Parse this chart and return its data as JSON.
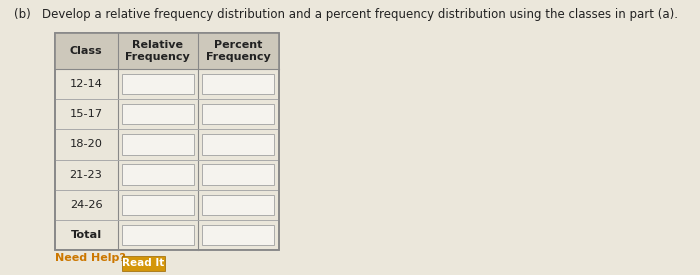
{
  "title": "(b)   Develop a relative frequency distribution and a percent frequency distribution using the classes in part (a).",
  "title_fontsize": 8.5,
  "col_headers": [
    "Class",
    "Relative\nFrequency",
    "Percent\nFrequency"
  ],
  "rows": [
    "12-14",
    "15-17",
    "18-20",
    "21-23",
    "24-26",
    "Total"
  ],
  "figure_bg": "#ebe7db",
  "table_bg": "#eae6da",
  "header_bg": "#cdc8bb",
  "input_box_color": "#f5f3ee",
  "input_box_border": "#aaaaaa",
  "table_border": "#888888",
  "row_line_color": "#aaaaaa",
  "need_help_text": "Need Help?",
  "read_it_text": "Read It",
  "read_it_bg": "#d4960a",
  "text_color": "#222222"
}
